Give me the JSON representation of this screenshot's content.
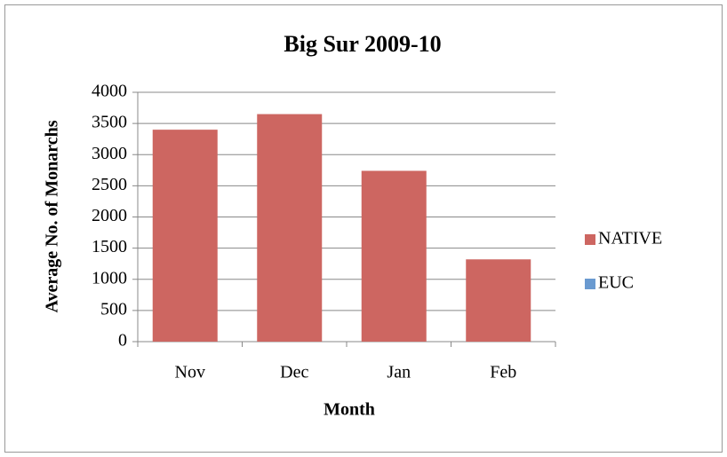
{
  "chart_data": {
    "type": "bar",
    "title": "Big Sur 2009-10",
    "x_label": "Month",
    "y_label": "Average No. of Monarchs",
    "categories": [
      "Nov",
      "Dec",
      "Jan",
      "Feb"
    ],
    "series": [
      {
        "name": "NATIVE",
        "color": "#cd6661",
        "values": [
          3400,
          3650,
          2740,
          1320
        ]
      },
      {
        "name": "EUC",
        "color": "#6a9ad0",
        "values": [
          null,
          null,
          null,
          null
        ]
      }
    ],
    "ylim": [
      0,
      4000
    ],
    "yticks": [
      0,
      500,
      1000,
      1500,
      2000,
      2500,
      3000,
      3500,
      4000
    ],
    "grid": true,
    "legend": "right"
  }
}
